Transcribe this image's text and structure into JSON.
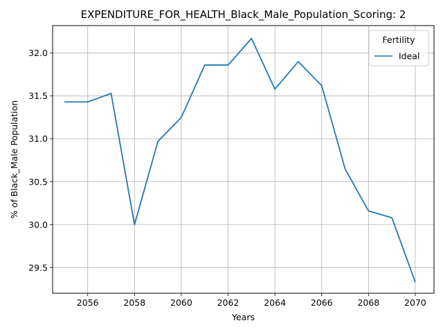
{
  "chart_data": {
    "type": "line",
    "title": "EXPENDITURE_FOR_HEALTH_Black_Male_Population_Scoring: 2",
    "xlabel": "Years",
    "ylabel": "% of Black_Male Population",
    "x": [
      2055,
      2056,
      2057,
      2058,
      2059,
      2060,
      2061,
      2062,
      2063,
      2064,
      2065,
      2066,
      2067,
      2068,
      2069,
      2070
    ],
    "series": [
      {
        "name": "Ideal",
        "color": "#1f77b4",
        "values": [
          31.43,
          31.43,
          31.53,
          30.0,
          30.97,
          31.25,
          31.86,
          31.86,
          32.17,
          31.58,
          31.9,
          31.62,
          30.65,
          30.16,
          30.08,
          29.33
        ]
      }
    ],
    "xlim": [
      2054.5,
      2070.8
    ],
    "ylim": [
      29.2,
      32.32
    ],
    "xticks": [
      2056,
      2058,
      2060,
      2062,
      2064,
      2066,
      2068,
      2070
    ],
    "yticks": [
      29.5,
      30.0,
      30.5,
      31.0,
      31.5,
      32.0
    ],
    "ytick_labels": [
      "29.5",
      "30.0",
      "30.5",
      "31.0",
      "31.5",
      "32.0"
    ],
    "grid": true,
    "legend": {
      "title": "Fertility",
      "placement": "top-right"
    }
  }
}
